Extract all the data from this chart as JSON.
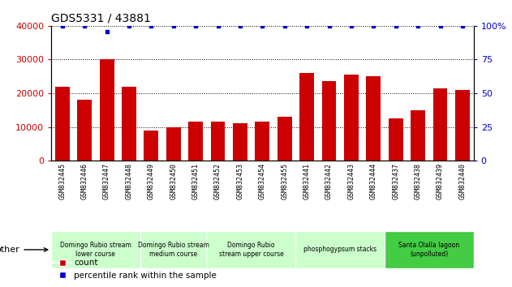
{
  "title": "GDS5331 / 43881",
  "samples": [
    "GSM832445",
    "GSM832446",
    "GSM832447",
    "GSM832448",
    "GSM832449",
    "GSM832450",
    "GSM832451",
    "GSM832452",
    "GSM832453",
    "GSM832454",
    "GSM832455",
    "GSM832441",
    "GSM832442",
    "GSM832443",
    "GSM832444",
    "GSM832437",
    "GSM832438",
    "GSM832439",
    "GSM832440"
  ],
  "counts": [
    22000,
    18000,
    30000,
    22000,
    9000,
    10000,
    11500,
    11500,
    11000,
    11500,
    13000,
    26000,
    23500,
    25500,
    25000,
    12500,
    15000,
    21500,
    21000
  ],
  "percentiles": [
    100,
    100,
    96,
    100,
    100,
    100,
    100,
    100,
    100,
    100,
    100,
    100,
    100,
    100,
    100,
    100,
    100,
    100,
    100
  ],
  "bar_color": "#cc0000",
  "dot_color": "#0000cc",
  "ylim_left": [
    0,
    40000
  ],
  "ylim_right": [
    0,
    100
  ],
  "yticks_left": [
    0,
    10000,
    20000,
    30000,
    40000
  ],
  "yticks_right": [
    0,
    25,
    50,
    75,
    100
  ],
  "groups": [
    {
      "label": "Domingo Rubio stream\nlower course",
      "start": 0,
      "end": 4,
      "color": "#ccffcc"
    },
    {
      "label": "Domingo Rubio stream\nmedium course",
      "start": 4,
      "end": 7,
      "color": "#ccffcc"
    },
    {
      "label": "Domingo Rubio\nstream upper course",
      "start": 7,
      "end": 11,
      "color": "#ccffcc"
    },
    {
      "label": "phosphogypsum stacks",
      "start": 11,
      "end": 15,
      "color": "#ccffcc"
    },
    {
      "label": "Santa Olalla lagoon\n(unpolluted)",
      "start": 15,
      "end": 19,
      "color": "#44cc44"
    }
  ],
  "legend_count_label": "count",
  "legend_pct_label": "percentile rank within the sample",
  "other_label": "other",
  "xtick_bg_color": "#d0d0d0",
  "plot_bg_color": "#ffffff",
  "group_border_color": "#ffffff"
}
